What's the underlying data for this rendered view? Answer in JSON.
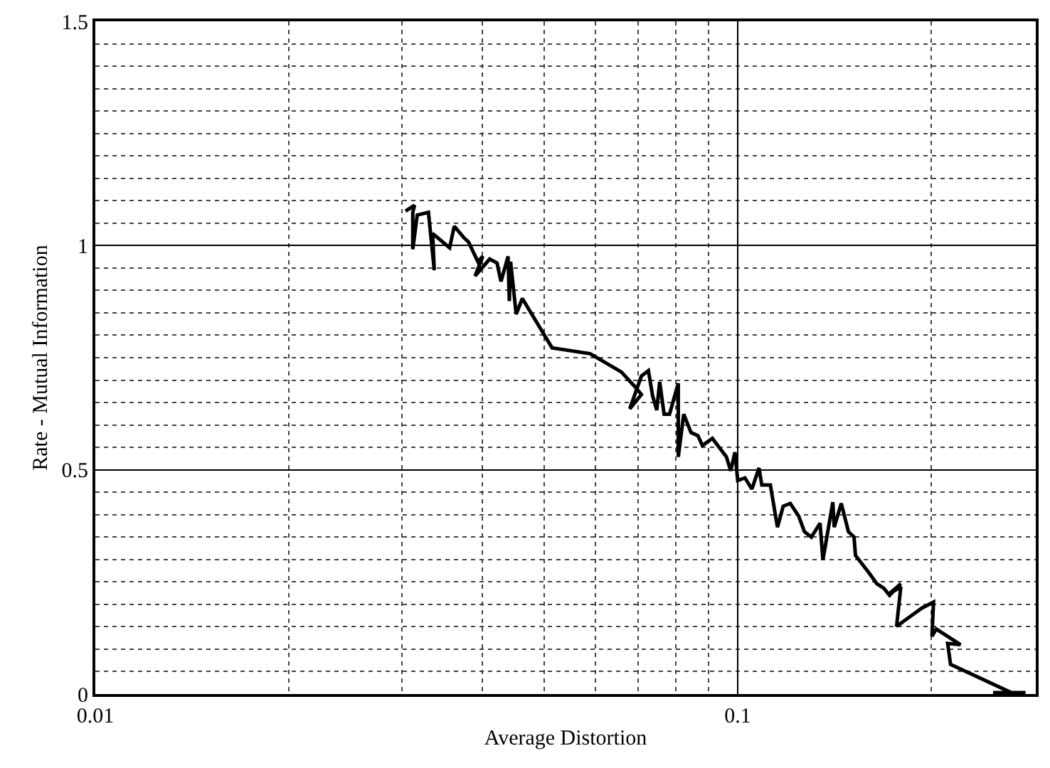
{
  "chart_data": {
    "type": "line",
    "xlabel": "Average Distortion",
    "ylabel": "Rate - Mutual Information",
    "log": "x",
    "grid": true,
    "marker": "none",
    "line_style": "solid",
    "xlim": [
      0.01,
      0.291
    ],
    "xticks": [
      0.01,
      0.1
    ],
    "ylim": [
      0,
      1.5
    ],
    "yticks": [
      0,
      0.5,
      1,
      1.5
    ],
    "series": [
      {
        "color": "#000000",
        "x": [
          0.0304,
          0.0314,
          0.0312,
          0.0312,
          0.0317,
          0.033,
          0.0337,
          0.0335,
          0.0356,
          0.0362,
          0.0375,
          0.0381,
          0.0394,
          0.0401,
          0.039,
          0.0411,
          0.0422,
          0.0428,
          0.0439,
          0.0441,
          0.0443,
          0.0452,
          0.0462,
          0.0514,
          0.0589,
          0.0659,
          0.069,
          0.0708,
          0.0679,
          0.0708,
          0.0726,
          0.0737,
          0.0748,
          0.0756,
          0.0768,
          0.0783,
          0.0808,
          0.0808,
          0.0824,
          0.0846,
          0.0867,
          0.0881,
          0.0913,
          0.096,
          0.0975,
          0.099,
          0.1,
          0.1026,
          0.1052,
          0.1079,
          0.109,
          0.1124,
          0.1153,
          0.1177,
          0.1207,
          0.1244,
          0.127,
          0.1302,
          0.1343,
          0.1357,
          0.1406,
          0.1413,
          0.1449,
          0.1487,
          0.1517,
          0.1525,
          0.1605,
          0.1646,
          0.1688,
          0.1723,
          0.1794,
          0.1723,
          0.1794,
          0.1767,
          0.1936,
          0.2017,
          0.2006,
          0.2037,
          0.2222,
          0.2122,
          0.2144,
          0.2667,
          0.2497,
          0.2806
        ],
        "values": [
          1.077,
          1.09,
          1.074,
          0.992,
          1.068,
          1.074,
          0.945,
          1.027,
          0.995,
          1.043,
          1.017,
          1.008,
          0.964,
          0.976,
          0.932,
          0.97,
          0.961,
          0.92,
          0.976,
          0.876,
          0.964,
          0.847,
          0.882,
          0.772,
          0.759,
          0.718,
          0.687,
          0.668,
          0.636,
          0.709,
          0.721,
          0.665,
          0.633,
          0.696,
          0.624,
          0.624,
          0.693,
          0.529,
          0.624,
          0.583,
          0.576,
          0.554,
          0.57,
          0.529,
          0.498,
          0.539,
          0.476,
          0.482,
          0.457,
          0.504,
          0.466,
          0.466,
          0.372,
          0.419,
          0.425,
          0.397,
          0.362,
          0.35,
          0.381,
          0.299,
          0.428,
          0.372,
          0.425,
          0.362,
          0.35,
          0.309,
          0.268,
          0.246,
          0.236,
          0.22,
          0.246,
          0.224,
          0.239,
          0.151,
          0.192,
          0.205,
          0.129,
          0.145,
          0.11,
          0.113,
          0.066,
          0.003,
          0.003,
          0.003
        ]
      }
    ]
  }
}
